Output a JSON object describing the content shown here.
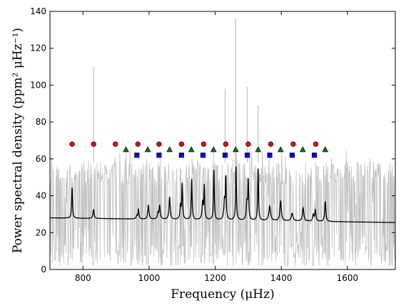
{
  "chart_data": {
    "type": "line",
    "xlabel": "Frequency (μHz)",
    "ylabel": "Power spectral density (ppm² μHz⁻¹)",
    "xlim": [
      700,
      1745
    ],
    "ylim": [
      0,
      140
    ],
    "xticks": [
      800,
      1000,
      1200,
      1400,
      1600
    ],
    "yticks": [
      0,
      20,
      40,
      60,
      80,
      100,
      120,
      140
    ],
    "grid": false,
    "colors": {
      "noise": "#bfbfbf",
      "fit": "#000000",
      "circle": "#ff0000",
      "square": "#0000ff",
      "triangle": "#008000"
    },
    "series": [
      {
        "kind": "noise",
        "description_values": {
          "base_level": 28,
          "typical_range": [
            2,
            58
          ],
          "spikes": [
            {
              "x": 832,
              "y": 110
            },
            {
              "x": 1262,
              "y": 136
            },
            {
              "x": 1230,
              "y": 98
            },
            {
              "x": 1297,
              "y": 99
            },
            {
              "x": 1330,
              "y": 89
            }
          ]
        }
      },
      {
        "kind": "fit",
        "background_start": 28,
        "background_end": 25.5,
        "peaks": [
          {
            "x": 767,
            "y": 44.5,
            "w": 1.5
          },
          {
            "x": 832,
            "y": 32.5,
            "w": 2.0
          },
          {
            "x": 963,
            "y": 29.5,
            "w": 2.0
          },
          {
            "x": 968,
            "y": 33.0,
            "w": 1.5
          },
          {
            "x": 998,
            "y": 35.0,
            "w": 2.0
          },
          {
            "x": 1027,
            "y": 31.0,
            "w": 2.0
          },
          {
            "x": 1032,
            "y": 35.0,
            "w": 2.0
          },
          {
            "x": 1062,
            "y": 39.5,
            "w": 2.0
          },
          {
            "x": 1095,
            "y": 35.0,
            "w": 2.0
          },
          {
            "x": 1100,
            "y": 47.0,
            "w": 1.5
          },
          {
            "x": 1129,
            "y": 49.5,
            "w": 1.5
          },
          {
            "x": 1162,
            "y": 37.0,
            "w": 2.0
          },
          {
            "x": 1167,
            "y": 46.5,
            "w": 1.5
          },
          {
            "x": 1196,
            "y": 54.0,
            "w": 1.5
          },
          {
            "x": 1228,
            "y": 38.0,
            "w": 2.0
          },
          {
            "x": 1232,
            "y": 51.5,
            "w": 1.5
          },
          {
            "x": 1263,
            "y": 56.0,
            "w": 1.5
          },
          {
            "x": 1296,
            "y": 37.0,
            "w": 2.0
          },
          {
            "x": 1300,
            "y": 50.0,
            "w": 1.5
          },
          {
            "x": 1330,
            "y": 55.0,
            "w": 1.5
          },
          {
            "x": 1365,
            "y": 34.5,
            "w": 3.0
          },
          {
            "x": 1398,
            "y": 37.5,
            "w": 2.5
          },
          {
            "x": 1433,
            "y": 30.5,
            "w": 3.0
          },
          {
            "x": 1466,
            "y": 33.5,
            "w": 2.5
          },
          {
            "x": 1497,
            "y": 30.0,
            "w": 2.0
          },
          {
            "x": 1503,
            "y": 32.5,
            "w": 2.0
          },
          {
            "x": 1533,
            "y": 37.0,
            "w": 2.0
          }
        ]
      },
      {
        "kind": "markers",
        "marker": "circle",
        "y": 68,
        "x": [
          767,
          832,
          898,
          966,
          1030,
          1098,
          1165,
          1232,
          1300,
          1368,
          1436,
          1504
        ]
      },
      {
        "kind": "markers",
        "marker": "square",
        "y": 62,
        "x": [
          963,
          1030,
          1098,
          1163,
          1230,
          1297,
          1365,
          1433,
          1500
        ]
      },
      {
        "kind": "markers",
        "marker": "triangle",
        "y": 65,
        "x": [
          930,
          996,
          1062,
          1128,
          1195,
          1262,
          1330,
          1398,
          1465,
          1533
        ]
      }
    ]
  }
}
